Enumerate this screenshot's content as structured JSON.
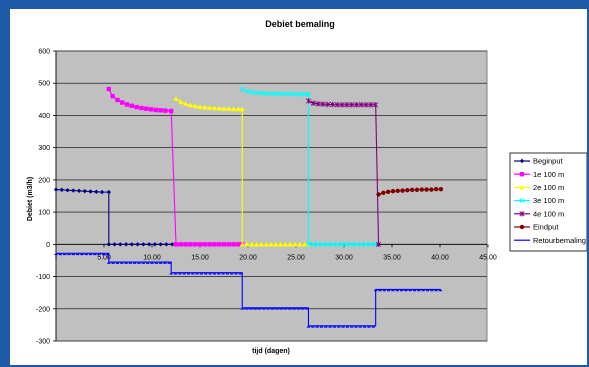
{
  "chart_data": {
    "type": "line",
    "title": "Debiet bemaling",
    "xlabel": "tijd (dagen)",
    "ylabel": "Debiet (m3/h)",
    "xlim": [
      0,
      45
    ],
    "ylim": [
      -300,
      600
    ],
    "x_tick_labels": [
      "-",
      "5.00",
      "10.00",
      "15.00",
      "20.00",
      "25.00",
      "30.00",
      "35.00",
      "40.00",
      "45.00"
    ],
    "y_tick_labels": [
      "600",
      "500",
      "400",
      "300",
      "200",
      "100",
      "0",
      "-100",
      "-200",
      "-300"
    ],
    "grid": true,
    "plot_background": "#c0c0c0",
    "legend_position": "right",
    "series": [
      {
        "name": "Beginput",
        "color": "#000080",
        "marker": "diamond",
        "points": [
          [
            0.0,
            170
          ],
          [
            0.6,
            169
          ],
          [
            1.2,
            168
          ],
          [
            1.8,
            167
          ],
          [
            2.4,
            166
          ],
          [
            3.0,
            165
          ],
          [
            3.6,
            164
          ],
          [
            4.2,
            163
          ],
          [
            4.8,
            162
          ],
          [
            5.5,
            162
          ],
          [
            5.5,
            0
          ],
          [
            6.1,
            0
          ],
          [
            6.7,
            0
          ],
          [
            7.3,
            0
          ],
          [
            7.9,
            0
          ],
          [
            8.5,
            0
          ],
          [
            9.1,
            0
          ],
          [
            9.7,
            0
          ],
          [
            10.3,
            0
          ],
          [
            10.9,
            0
          ],
          [
            11.5,
            0
          ],
          [
            12.1,
            0
          ]
        ]
      },
      {
        "name": "1e 100 m",
        "color": "#ff00ff",
        "marker": "square",
        "points": [
          [
            5.5,
            482
          ],
          [
            5.9,
            460
          ],
          [
            6.4,
            448
          ],
          [
            6.9,
            440
          ],
          [
            7.4,
            434
          ],
          [
            7.9,
            430
          ],
          [
            8.4,
            426
          ],
          [
            8.9,
            423
          ],
          [
            9.4,
            421
          ],
          [
            9.9,
            419
          ],
          [
            10.4,
            417
          ],
          [
            10.9,
            416
          ],
          [
            11.4,
            415
          ],
          [
            12.0,
            414
          ],
          [
            12.5,
            0
          ],
          [
            13.0,
            0
          ],
          [
            13.5,
            0
          ],
          [
            14.0,
            0
          ],
          [
            14.5,
            0
          ],
          [
            15.0,
            0
          ],
          [
            15.5,
            0
          ],
          [
            16.0,
            0
          ],
          [
            16.5,
            0
          ],
          [
            17.0,
            0
          ],
          [
            17.5,
            0
          ],
          [
            18.0,
            0
          ],
          [
            18.5,
            0
          ],
          [
            19.0,
            0
          ],
          [
            19.4,
            0
          ]
        ]
      },
      {
        "name": "2e 100 m",
        "color": "#ffff00",
        "marker": "triangle",
        "points": [
          [
            12.5,
            452
          ],
          [
            13.0,
            442
          ],
          [
            13.5,
            436
          ],
          [
            14.0,
            432
          ],
          [
            14.5,
            429
          ],
          [
            15.0,
            427
          ],
          [
            15.5,
            425
          ],
          [
            16.0,
            424
          ],
          [
            16.5,
            423
          ],
          [
            17.0,
            422
          ],
          [
            17.5,
            421
          ],
          [
            18.0,
            421
          ],
          [
            18.5,
            420
          ],
          [
            19.0,
            420
          ],
          [
            19.4,
            420
          ],
          [
            19.4,
            0
          ],
          [
            19.9,
            0
          ],
          [
            20.4,
            0
          ],
          [
            20.9,
            0
          ],
          [
            21.4,
            0
          ],
          [
            21.9,
            0
          ],
          [
            22.4,
            0
          ],
          [
            22.9,
            0
          ],
          [
            23.4,
            0
          ],
          [
            23.9,
            0
          ],
          [
            24.4,
            0
          ],
          [
            24.9,
            0
          ],
          [
            25.4,
            0
          ],
          [
            25.9,
            0
          ],
          [
            26.3,
            0
          ]
        ]
      },
      {
        "name": "3e 100 m",
        "color": "#00ffff",
        "marker": "x",
        "points": [
          [
            19.4,
            482
          ],
          [
            19.9,
            475
          ],
          [
            20.4,
            472
          ],
          [
            20.9,
            470
          ],
          [
            21.4,
            469
          ],
          [
            21.9,
            468
          ],
          [
            22.4,
            468
          ],
          [
            22.9,
            467
          ],
          [
            23.4,
            467
          ],
          [
            23.9,
            467
          ],
          [
            24.4,
            467
          ],
          [
            24.9,
            466
          ],
          [
            25.4,
            466
          ],
          [
            25.9,
            466
          ],
          [
            26.3,
            466
          ],
          [
            26.3,
            0
          ],
          [
            26.8,
            0
          ],
          [
            27.3,
            0
          ],
          [
            27.8,
            0
          ],
          [
            28.3,
            0
          ],
          [
            28.8,
            0
          ],
          [
            29.3,
            0
          ],
          [
            29.8,
            0
          ],
          [
            30.3,
            0
          ],
          [
            30.8,
            0
          ],
          [
            31.3,
            0
          ],
          [
            31.8,
            0
          ],
          [
            32.3,
            0
          ],
          [
            32.8,
            0
          ],
          [
            33.3,
            0
          ]
        ]
      },
      {
        "name": "4e 100 m",
        "color": "#800080",
        "marker": "star",
        "points": [
          [
            26.3,
            445
          ],
          [
            26.8,
            438
          ],
          [
            27.3,
            436
          ],
          [
            27.8,
            435
          ],
          [
            28.3,
            434
          ],
          [
            28.8,
            434
          ],
          [
            29.3,
            433
          ],
          [
            29.8,
            433
          ],
          [
            30.3,
            433
          ],
          [
            30.8,
            433
          ],
          [
            31.3,
            433
          ],
          [
            31.8,
            433
          ],
          [
            32.3,
            433
          ],
          [
            32.8,
            433
          ],
          [
            33.3,
            433
          ],
          [
            33.6,
            0
          ]
        ]
      },
      {
        "name": "Eindput",
        "color": "#800000",
        "marker": "circle",
        "points": [
          [
            33.6,
            155
          ],
          [
            34.1,
            160
          ],
          [
            34.6,
            163
          ],
          [
            35.1,
            165
          ],
          [
            35.6,
            166
          ],
          [
            36.1,
            167
          ],
          [
            36.6,
            168
          ],
          [
            37.1,
            169
          ],
          [
            37.6,
            169
          ],
          [
            38.1,
            170
          ],
          [
            38.6,
            170
          ],
          [
            39.1,
            170
          ],
          [
            39.6,
            171
          ],
          [
            40.1,
            171
          ]
        ]
      },
      {
        "name": "Retourbemaling",
        "color": "#0000ff",
        "marker": "dash",
        "points": [
          [
            0.0,
            -28
          ],
          [
            5.5,
            -28
          ],
          [
            5.5,
            -55
          ],
          [
            12.0,
            -55
          ],
          [
            12.0,
            -88
          ],
          [
            19.4,
            -88
          ],
          [
            19.4,
            -197
          ],
          [
            26.3,
            -197
          ],
          [
            26.3,
            -253
          ],
          [
            33.3,
            -253
          ],
          [
            33.3,
            -140
          ],
          [
            40.1,
            -140
          ]
        ]
      }
    ]
  }
}
